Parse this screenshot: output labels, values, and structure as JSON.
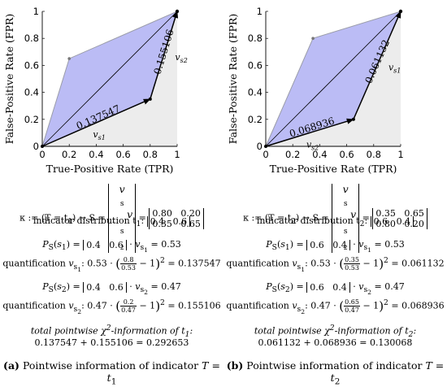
{
  "panels": [
    {
      "id": "a",
      "chart_data": {
        "type": "line",
        "xlabel": "True-Positive Rate (TPR)",
        "ylabel": "False-Positive Rate (FPR)",
        "xlim": [
          0,
          1
        ],
        "ylim": [
          0,
          1
        ],
        "xticks": [
          "0",
          "0.2",
          "0.4",
          "0.6",
          "0.8",
          "1"
        ],
        "yticks": [
          "0",
          "0.2",
          "0.4",
          "0.6",
          "0.8",
          "1"
        ],
        "points": [
          {
            "name": "vs1",
            "x": 0.8,
            "y": 0.35
          },
          {
            "name": "vs2",
            "x": 0.2,
            "y": 0.65
          }
        ],
        "vectors": [
          {
            "label": "v_s1",
            "length_label": "0.137547",
            "from": [
              0,
              0
            ],
            "to": [
              0.8,
              0.35
            ]
          },
          {
            "label": "v_s2",
            "length_label": "0.155106",
            "from": [
              0.8,
              0.35
            ],
            "to": [
              1,
              1
            ]
          }
        ]
      },
      "kappa": {
        "lhs": "κ := (T = t",
        "sub": "1",
        "mid": ") → S =",
        "v1": "v",
        "v1sub": "s",
        "v1subsub": "1",
        "v2": "v",
        "v2sub": "s",
        "v2subsub": "2",
        "m11": "0.80",
        "m12": "0.20",
        "m21": "0.35",
        "m22": "0.65"
      },
      "indicator": {
        "label": "indicator distribution t",
        "sub": "1",
        "colon": ":",
        "p1": "0.4",
        "p2": "0.6"
      },
      "ps1": {
        "value": "0.53",
        "vsub": "1"
      },
      "q1": {
        "pre": "quantification",
        "vsub": "1",
        "coef": "0.53",
        "num": "0.8",
        "den": "0.53",
        "result": "0.137547"
      },
      "ps2": {
        "value": "0.47",
        "vsub": "2"
      },
      "q2": {
        "pre": "quantification",
        "vsub": "2",
        "coef": "0.47",
        "num": "0.2",
        "den": "0.47",
        "result": "0.155106"
      },
      "total": {
        "title_pre": "total pointwise χ",
        "title_post": "-information of t",
        "sub": "1",
        "sum": "0.137547 + 0.155106 = 0.292653"
      },
      "caption": {
        "tag": "(a)",
        "text": "Pointwise information of indicator",
        "tsub": "1"
      }
    },
    {
      "id": "b",
      "chart_data": {
        "type": "line",
        "xlabel": "True-Positive Rate (TPR)",
        "ylabel": "False-Positive Rate (FPR)",
        "xlim": [
          0,
          1
        ],
        "ylim": [
          0,
          1
        ],
        "xticks": [
          "0",
          "0.2",
          "0.4",
          "0.6",
          "0.8",
          "1"
        ],
        "yticks": [
          "0",
          "0.2",
          "0.4",
          "0.6",
          "0.8",
          "1"
        ],
        "points": [
          {
            "name": "vs2",
            "x": 0.65,
            "y": 0.2
          },
          {
            "name": "vs1",
            "x": 0.35,
            "y": 0.8
          }
        ],
        "vectors": [
          {
            "label": "v_s2",
            "length_label": "0.068936",
            "from": [
              0,
              0
            ],
            "to": [
              0.65,
              0.2
            ]
          },
          {
            "label": "v_s1",
            "length_label": "0.061132",
            "from": [
              0.65,
              0.2
            ],
            "to": [
              1,
              1
            ]
          }
        ]
      },
      "kappa": {
        "lhs": "κ := (T = t",
        "sub": "2",
        "mid": ") → S =",
        "v1": "v",
        "v1sub": "s",
        "v1subsub": "1",
        "v2": "v",
        "v2sub": "s",
        "v2subsub": "2",
        "m11": "0.35",
        "m12": "0.65",
        "m21": "0.80",
        "m22": "0.20"
      },
      "indicator": {
        "label": "indicator distribution t",
        "sub": "2",
        "colon": ":",
        "p1": "0.6",
        "p2": "0.4"
      },
      "ps1": {
        "value": "0.53",
        "vsub": "1"
      },
      "q1": {
        "pre": "quantification",
        "vsub": "1",
        "coef": "0.53",
        "num": "0.35",
        "den": "0.53",
        "result": "0.061132"
      },
      "ps2": {
        "value": "0.47",
        "vsub": "2"
      },
      "q2": {
        "pre": "quantification",
        "vsub": "2",
        "coef": "0.47",
        "num": "0.65",
        "den": "0.47",
        "result": "0.068936"
      },
      "total": {
        "title_pre": "total pointwise χ",
        "title_post": "-information of t",
        "sub": "2",
        "sum": "0.061132 + 0.068936 = 0.130068"
      },
      "caption": {
        "tag": "(b)",
        "text": "Pointwise information of indicator",
        "tsub": "2"
      }
    }
  ],
  "colors": {
    "fill": "#bbbcf5",
    "fill_edge": "#9a9ca8",
    "shade": "#ececec",
    "vector": "#000000"
  }
}
